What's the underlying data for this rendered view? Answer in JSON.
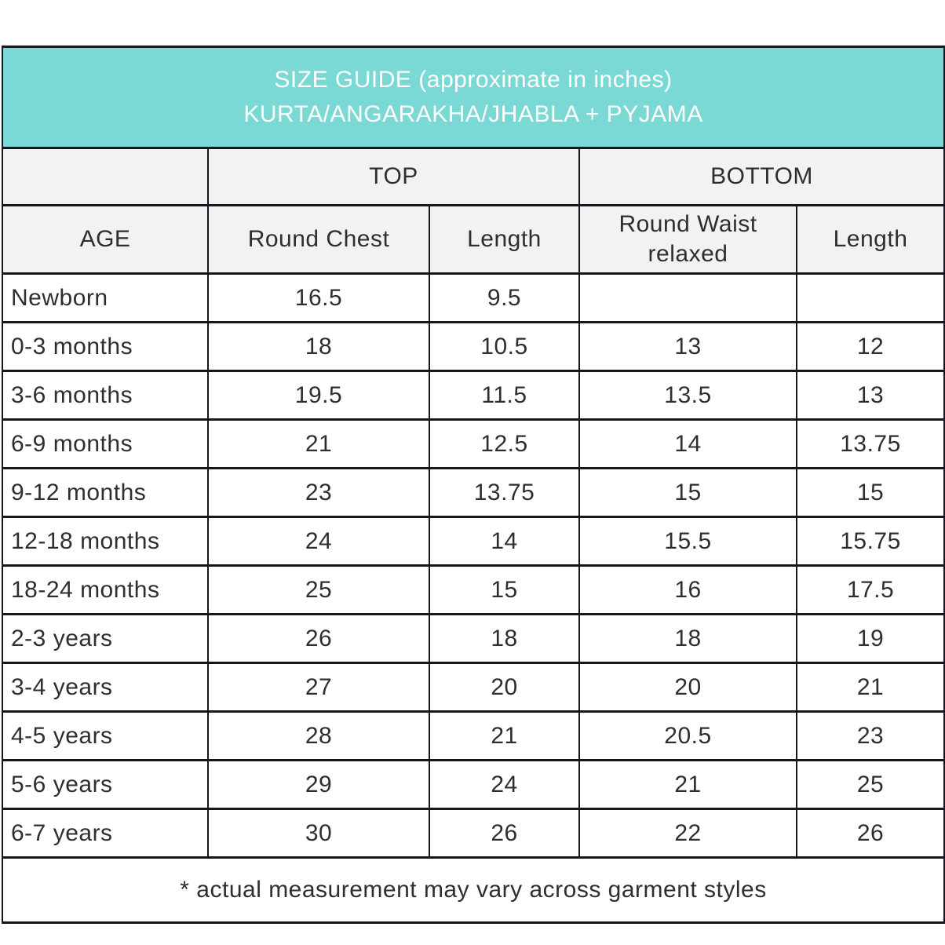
{
  "title": {
    "line1": "SIZE GUIDE (approximate in inches)",
    "line2": "KURTA/ANGARAKHA/JHABLA + PYJAMA"
  },
  "colors": {
    "header_teal": "#7ad9d5",
    "header_gray": "#f2f2f2",
    "border": "#16161e",
    "text": "#2e2e2e",
    "title_text": "#ffffff"
  },
  "chart_data": {
    "type": "table",
    "title": "SIZE GUIDE (approximate in inches)",
    "subtitle": "KURTA/ANGARAKHA/JHABLA + PYJAMA",
    "group_headers": [
      {
        "label": "",
        "span": 1
      },
      {
        "label": "TOP",
        "span": 2
      },
      {
        "label": "BOTTOM",
        "span": 2
      }
    ],
    "columns": [
      "AGE",
      "Round Chest",
      "Length",
      "Round Waist relaxed",
      "Length"
    ],
    "rows": [
      [
        "Newborn",
        "16.5",
        "9.5",
        "",
        ""
      ],
      [
        "0-3 months",
        "18",
        "10.5",
        "13",
        "12"
      ],
      [
        "3-6 months",
        "19.5",
        "11.5",
        "13.5",
        "13"
      ],
      [
        "6-9 months",
        "21",
        "12.5",
        "14",
        "13.75"
      ],
      [
        "9-12 months",
        "23",
        "13.75",
        "15",
        "15"
      ],
      [
        "12-18 months",
        "24",
        "14",
        "15.5",
        "15.75"
      ],
      [
        "18-24 months",
        "25",
        "15",
        "16",
        "17.5"
      ],
      [
        "2-3 years",
        "26",
        "18",
        "18",
        "19"
      ],
      [
        "3-4 years",
        "27",
        "20",
        "20",
        "21"
      ],
      [
        "4-5 years",
        "28",
        "21",
        "20.5",
        "23"
      ],
      [
        "5-6 years",
        "29",
        "24",
        "21",
        "25"
      ],
      [
        "6-7 years",
        "30",
        "26",
        "22",
        "26"
      ]
    ],
    "footnote": "* actual measurement may vary across garment styles"
  }
}
